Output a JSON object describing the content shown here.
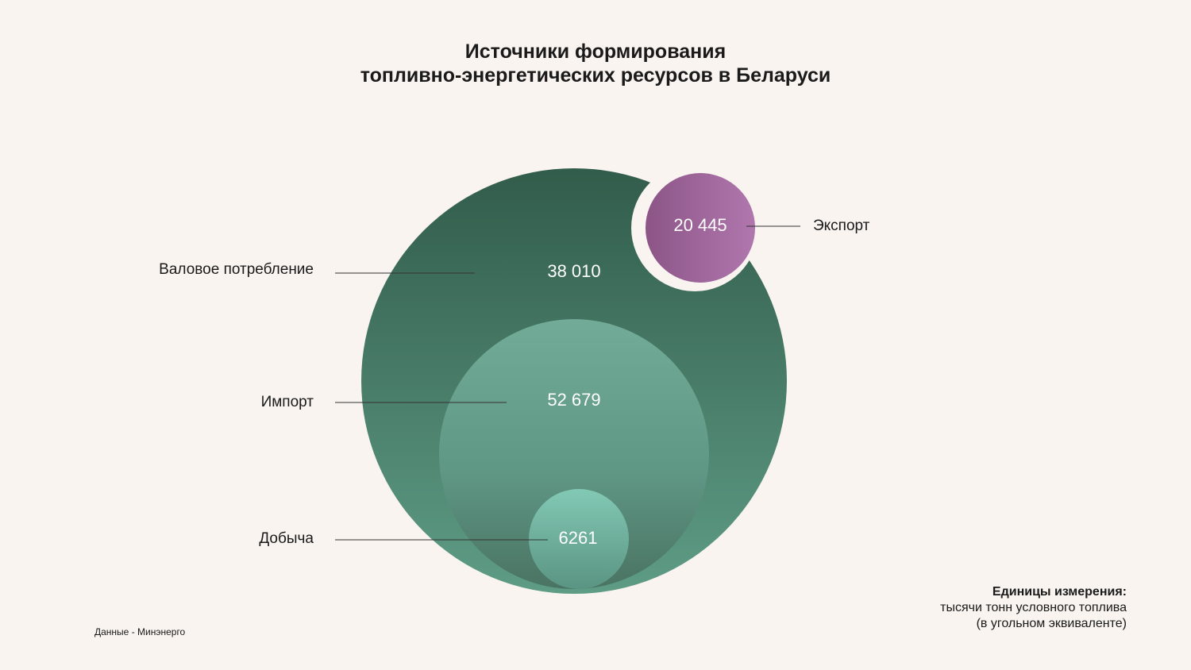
{
  "title": {
    "line1": "Источники формирования",
    "line2": "топливно-энергетических ресурсов в Беларуси"
  },
  "chart_data": {
    "type": "bubble",
    "title": "Источники формирования топливно-энергетических ресурсов в Беларуси",
    "series": [
      {
        "name": "Валовое потребление",
        "value": 38010,
        "value_label": "38 010",
        "color": "#3b6b58"
      },
      {
        "name": "Импорт",
        "value": 52679,
        "value_label": "52 679",
        "color": "#6aa893"
      },
      {
        "name": "Добыча",
        "value": 6261,
        "value_label": "6261",
        "color": "#7ec4b0"
      },
      {
        "name": "Экспорт",
        "value": 20445,
        "value_label": "20 445",
        "color": "#a46ba6"
      }
    ]
  },
  "source": "Данные - Минэнерго",
  "units": {
    "heading": "Единицы измерения:",
    "line1": "тысячи тонн условного топлива",
    "line2": "(в угольном эквиваленте)"
  },
  "colors": {
    "background": "#f9f4f0",
    "outer_top": "#325c4b",
    "outer_bottom": "#5e9c86",
    "import_top": "#72ab98",
    "import_bottom": "#4a7363",
    "extraction": "#7ec4b0",
    "export_left": "#8f5887",
    "export_right": "#ad73ac",
    "leader": "#333333"
  }
}
